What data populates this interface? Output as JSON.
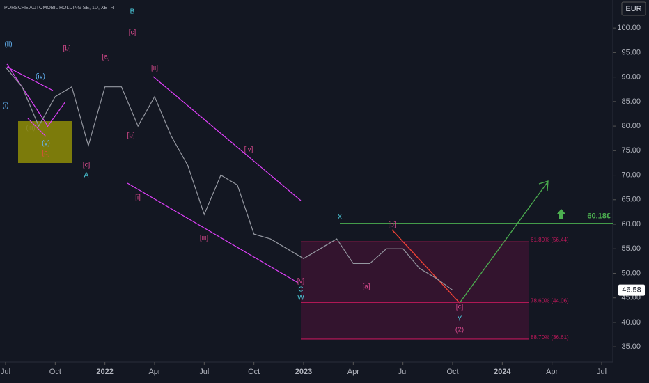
{
  "chart_data": {
    "type": "line",
    "title": "PORSCHE AUTOMOBIL HOLDING SE, 1D, XETR",
    "currency": "EUR",
    "x": [
      "2021-07",
      "2021-08",
      "2021-09",
      "2021-10",
      "2021-11",
      "2021-12",
      "2022-01",
      "2022-02",
      "2022-03",
      "2022-04",
      "2022-05",
      "2022-06",
      "2022-07",
      "2022-08",
      "2022-09",
      "2022-10",
      "2022-11",
      "2022-12",
      "2023-01",
      "2023-02",
      "2023-03",
      "2023-04",
      "2023-05",
      "2023-06",
      "2023-07",
      "2023-08",
      "2023-09",
      "2023-10"
    ],
    "series": [
      {
        "color": "#9598a1",
        "values": [
          92,
          88,
          80,
          86,
          88,
          76,
          88,
          88,
          80,
          86,
          78,
          72,
          62,
          70,
          68,
          58,
          57,
          55,
          53,
          55,
          57,
          52,
          52,
          55,
          55,
          51,
          49,
          46.58
        ]
      }
    ],
    "xlim": [
      "2021-07",
      "2024-07"
    ],
    "xticks": [
      {
        "value": "2021-07",
        "label": "Jul"
      },
      {
        "value": "2021-10",
        "label": "Oct"
      },
      {
        "value": "2022-01",
        "label": "2022"
      },
      {
        "value": "2022-04",
        "label": "Apr"
      },
      {
        "value": "2022-07",
        "label": "Jul"
      },
      {
        "value": "2022-10",
        "label": "Oct"
      },
      {
        "value": "2023-01",
        "label": "2023"
      },
      {
        "value": "2023-04",
        "label": "Apr"
      },
      {
        "value": "2023-07",
        "label": "Jul"
      },
      {
        "value": "2023-10",
        "label": "Oct"
      },
      {
        "value": "2024-01",
        "label": "2024"
      },
      {
        "value": "2024-04",
        "label": "Apr"
      },
      {
        "value": "2024-07",
        "label": "Jul"
      }
    ],
    "ylim": [
      31.9,
      105.7
    ],
    "yticks": [
      {
        "value": 35,
        "label": "35.00"
      },
      {
        "value": 40,
        "label": "40.00"
      },
      {
        "value": 45,
        "label": "45.00"
      },
      {
        "value": 50,
        "label": "50.00"
      },
      {
        "value": 55,
        "label": "55.00"
      },
      {
        "value": 60,
        "label": "60.00"
      },
      {
        "value": 65,
        "label": "65.00"
      },
      {
        "value": 70,
        "label": "70.00"
      },
      {
        "value": 75,
        "label": "75.00"
      },
      {
        "value": 80,
        "label": "80.00"
      },
      {
        "value": 85,
        "label": "85.00"
      },
      {
        "value": 90,
        "label": "90.00"
      },
      {
        "value": 95,
        "label": "95.00"
      },
      {
        "value": 100,
        "label": "100.00"
      }
    ],
    "fib_levels": {
      "values": [
        56.44,
        44.06,
        36.61
      ],
      "value_labels": [
        "61.80% (56.44)",
        "78.60% (44.06)",
        "88.70% (36.61)"
      ]
    },
    "target": {
      "value": 60.18,
      "label": "60.18€"
    },
    "annotations": [
      "(ii)",
      "(i)",
      "(iv)",
      "(iii)",
      "(v)",
      "[a]",
      "[b]",
      "[a]",
      "B",
      "[c]",
      "[b]",
      "[c]",
      "A",
      "[ii]",
      "[i]",
      "[iii]",
      "[iv]",
      "[v]",
      "C",
      "W",
      "X",
      "[b]",
      "[a]",
      "[c]",
      "Y",
      "(2)"
    ]
  }
}
